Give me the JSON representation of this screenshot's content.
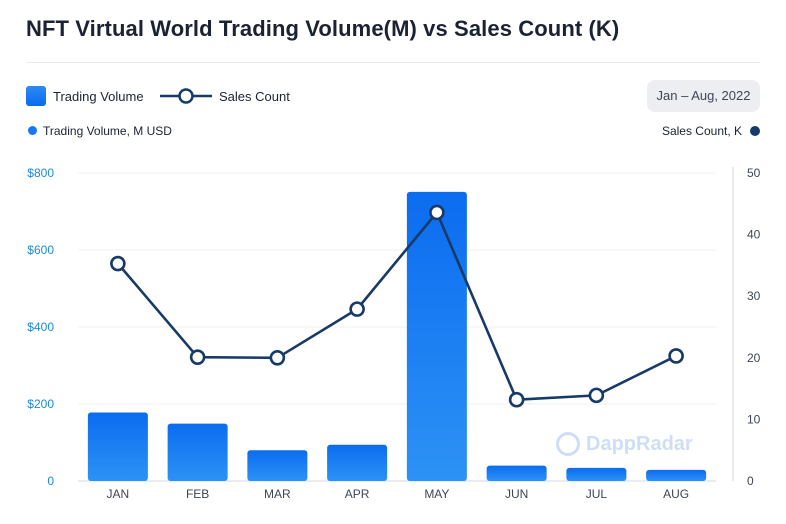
{
  "title": "NFT Virtual World Trading Volume(M) vs Sales Count (K)",
  "legend": {
    "bar_label": "Trading Volume",
    "line_label": "Sales Count"
  },
  "date_range": "Jan – Aug, 2022",
  "axis_titles": {
    "left": "Trading Volume, M USD",
    "right": "Sales Count, K"
  },
  "watermark": "DappRadar",
  "colors": {
    "bar": "#1877f2",
    "line": "#173a66",
    "left_axis_text": "#1c8ad6"
  },
  "chart_data": {
    "type": "bar",
    "categories": [
      "JAN",
      "FEB",
      "MAR",
      "APR",
      "MAY",
      "JUN",
      "JUL",
      "AUG"
    ],
    "series": [
      {
        "name": "Trading Volume",
        "type": "bar",
        "axis": "left",
        "values": [
          178,
          149,
          80,
          94,
          751,
          40,
          34,
          29
        ]
      },
      {
        "name": "Sales Count",
        "type": "line",
        "axis": "right",
        "values": [
          35.3,
          20.1,
          20.0,
          27.9,
          43.6,
          13.2,
          13.9,
          20.3
        ]
      }
    ],
    "left_axis": {
      "min": 0,
      "max": 800,
      "ticks": [
        0,
        200,
        400,
        600,
        800
      ],
      "tick_labels": [
        "0",
        "$200",
        "$400",
        "$600",
        "$800"
      ]
    },
    "right_axis": {
      "min": 0,
      "max": 50,
      "ticks": [
        0,
        10,
        20,
        30,
        40,
        50
      ],
      "tick_labels": [
        "0",
        "10",
        "20",
        "30",
        "40",
        "50"
      ]
    },
    "grid": true
  }
}
